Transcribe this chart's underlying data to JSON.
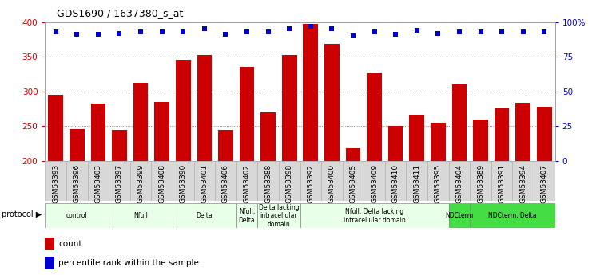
{
  "title": "GDS1690 / 1637380_s_at",
  "samples": [
    "GSM53393",
    "GSM53396",
    "GSM53403",
    "GSM53397",
    "GSM53399",
    "GSM53408",
    "GSM53390",
    "GSM53401",
    "GSM53406",
    "GSM53402",
    "GSM53388",
    "GSM53398",
    "GSM53392",
    "GSM53400",
    "GSM53405",
    "GSM53409",
    "GSM53410",
    "GSM53411",
    "GSM53395",
    "GSM53404",
    "GSM53389",
    "GSM53391",
    "GSM53394",
    "GSM53407"
  ],
  "counts": [
    295,
    246,
    283,
    244,
    312,
    285,
    346,
    352,
    244,
    335,
    270,
    353,
    397,
    368,
    218,
    327,
    250,
    266,
    255,
    310,
    260,
    275,
    284,
    278
  ],
  "percentiles": [
    93,
    91,
    91,
    92,
    93,
    93,
    93,
    95,
    91,
    93,
    93,
    95,
    97,
    95,
    90,
    93,
    91,
    94,
    92,
    93,
    93,
    93,
    93,
    93
  ],
  "ylim_left": [
    200,
    400
  ],
  "ylim_right": [
    0,
    100
  ],
  "bar_color": "#cc0000",
  "dot_color": "#0000cc",
  "grid_color": "#666666",
  "bg_color": "#ffffff",
  "protocol_groups": [
    {
      "label": "control",
      "start": 0,
      "end": 3,
      "color": "#e8ffe8"
    },
    {
      "label": "Nfull",
      "start": 3,
      "end": 6,
      "color": "#e8ffe8"
    },
    {
      "label": "Delta",
      "start": 6,
      "end": 9,
      "color": "#e8ffe8"
    },
    {
      "label": "Nfull,\nDelta",
      "start": 9,
      "end": 10,
      "color": "#e8ffe8"
    },
    {
      "label": "Delta lacking\nintracellular\ndomain",
      "start": 10,
      "end": 12,
      "color": "#e8ffe8"
    },
    {
      "label": "Nfull, Delta lacking\nintracellular domain",
      "start": 12,
      "end": 19,
      "color": "#e8ffe8"
    },
    {
      "label": "NDCterm",
      "start": 19,
      "end": 20,
      "color": "#44dd44"
    },
    {
      "label": "NDCterm, Delta",
      "start": 20,
      "end": 24,
      "color": "#44dd44"
    }
  ],
  "left_ticks": [
    200,
    250,
    300,
    350,
    400
  ],
  "right_ticks": [
    0,
    25,
    50,
    75,
    100
  ],
  "xlabel_fontsize": 6.5,
  "title_fontsize": 9,
  "tick_label_color_left": "#cc0000",
  "tick_label_color_right": "#0000cc",
  "ytick_fontsize": 7.5
}
